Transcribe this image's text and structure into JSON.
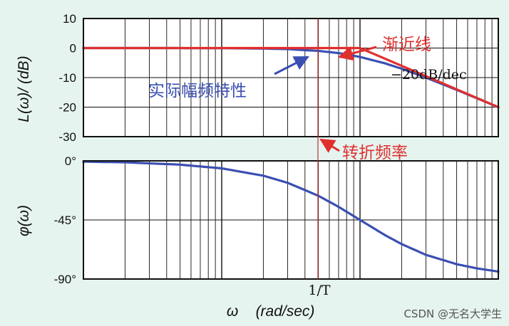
{
  "chart_data": [
    {
      "type": "line",
      "panel": "magnitude",
      "ylabel": "L(ω)/ (dB)",
      "ylim": [
        -30,
        10
      ],
      "yticks": [
        "10",
        "0",
        "-10",
        "-20",
        "-30"
      ],
      "ytick_values": [
        10,
        0,
        -10,
        -20,
        -30
      ],
      "x_scale": "log",
      "x_unit": "ω/ωT",
      "xlim": [
        0.01,
        10
      ],
      "series": [
        {
          "name": "实际幅频特性",
          "color": "#3b4fb2",
          "x": [
            0.01,
            0.02,
            0.05,
            0.1,
            0.2,
            0.3,
            0.5,
            0.7,
            1,
            1.5,
            2,
            3,
            5,
            7,
            10
          ],
          "y": [
            0,
            0,
            -0.01,
            -0.04,
            -0.17,
            -0.37,
            -0.97,
            -1.7,
            -3.01,
            -5.12,
            -6.99,
            -10.0,
            -14.15,
            -16.99,
            -20.04
          ]
        },
        {
          "name": "渐近线",
          "color": "#e0302e",
          "x": [
            0.01,
            1,
            10
          ],
          "y": [
            0,
            0,
            -20
          ]
        }
      ],
      "annotations": {
        "actual": "实际幅频特性",
        "asymptote": "渐近线",
        "slope": "−20dB/dec",
        "corner": "转折频率"
      }
    },
    {
      "type": "line",
      "panel": "phase",
      "ylabel": "φ(ω)",
      "ylim": [
        -90,
        0
      ],
      "yticks": [
        "0°",
        "-45°",
        "-90°"
      ],
      "ytick_values": [
        0,
        -45,
        -90
      ],
      "x_scale": "log",
      "xlim": [
        0.01,
        10
      ],
      "xtick": "1/T",
      "xlabel_omega": "ω",
      "xlabel_unit": "(rad/sec)",
      "series": [
        {
          "color": "#3b4fb2",
          "x": [
            0.01,
            0.02,
            0.05,
            0.1,
            0.2,
            0.3,
            0.5,
            0.7,
            1,
            1.5,
            2,
            3,
            5,
            7,
            10
          ],
          "y": [
            -0.6,
            -1.1,
            -2.9,
            -5.7,
            -11.3,
            -16.7,
            -26.6,
            -35.0,
            -45.0,
            -56.3,
            -63.4,
            -71.6,
            -78.7,
            -81.9,
            -84.3
          ]
        }
      ]
    }
  ],
  "watermark": "CSDN @无名大学生",
  "colors": {
    "background": "#e6f4f0",
    "actual": "#3b4fb2",
    "asymptote": "#e0302e",
    "corner_line": "#c0302e",
    "grid": "#111111"
  }
}
